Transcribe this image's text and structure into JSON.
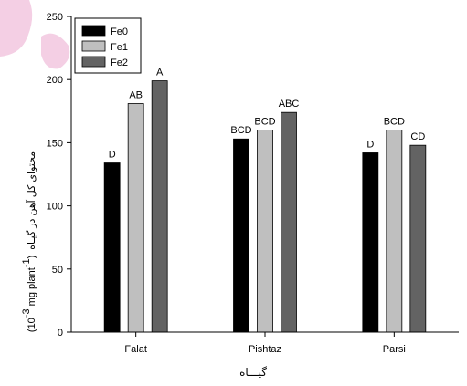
{
  "chart_data": {
    "type": "bar",
    "categories": [
      "Falat",
      "Pishtaz",
      "Parsi"
    ],
    "series": [
      {
        "name": "Fe0",
        "values": [
          134,
          153,
          142
        ],
        "labels": [
          "D",
          "BCD",
          "D"
        ],
        "color": "#000000"
      },
      {
        "name": "Fe1",
        "values": [
          181,
          160,
          160
        ],
        "labels": [
          "AB",
          "BCD",
          "BCD"
        ],
        "color": "#bfbfbf"
      },
      {
        "name": "Fe2",
        "values": [
          199,
          174,
          148
        ],
        "labels": [
          "A",
          "ABC",
          "CD"
        ],
        "color": "#636363"
      }
    ],
    "ylim": [
      0,
      250
    ],
    "yticks": [
      0,
      50,
      100,
      150,
      200,
      250
    ],
    "xlabel": "گیـــاه",
    "ylabel": {
      "persian": "محتوای کل آهن در گیـاه",
      "units_prefix": "(10",
      "units_exp1": "-3",
      "units_mid": " mg plant",
      "units_exp2": "-1",
      "units_suffix": ")"
    },
    "legend_position": "top-left",
    "grid": false
  }
}
